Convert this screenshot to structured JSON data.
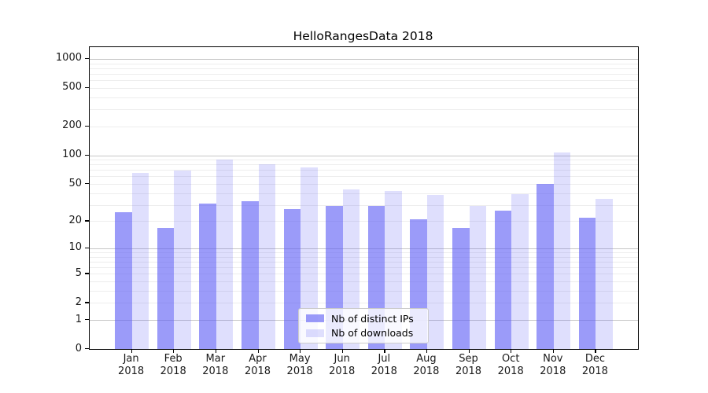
{
  "chart_data": {
    "type": "bar",
    "title": "HelloRangesData 2018",
    "categories": [
      "Jan",
      "Feb",
      "Mar",
      "Apr",
      "May",
      "Jun",
      "Jul",
      "Aug",
      "Sep",
      "Oct",
      "Nov",
      "Dec"
    ],
    "x_year_label": "2018",
    "series": [
      {
        "name": "Nb of distinct IPs",
        "values": [
          25,
          17,
          31,
          33,
          27,
          29,
          29,
          21,
          17,
          26,
          50,
          22
        ]
      },
      {
        "name": "Nb of downloads",
        "values": [
          65,
          69,
          90,
          80,
          75,
          44,
          42,
          38,
          29,
          39,
          107,
          35
        ]
      }
    ],
    "y_axis": {
      "scale": "log10(value+1)",
      "tick_values": [
        0,
        1,
        2,
        5,
        10,
        20,
        50,
        100,
        200,
        500,
        1000
      ],
      "tick_labels": [
        "0",
        "1",
        "2",
        "5",
        "10",
        "20",
        "50",
        "100",
        "200",
        "500",
        "1000"
      ],
      "ylim": [
        0,
        1320
      ],
      "major_grid_values": [
        1,
        10,
        100,
        1000
      ]
    },
    "grid": "on",
    "legend_position": "lower-center"
  },
  "colors": {
    "bar_distinct_ips": "rgba(93,93,246,0.62)",
    "bar_downloads": "rgba(93,93,246,0.20)",
    "grid_major": "#c6c6c6",
    "grid_minor": "#ededed",
    "axis": "#000000",
    "legend_border": "#cccccc",
    "legend_bg": "rgba(255,255,255,0.8)",
    "text": "#000000"
  }
}
